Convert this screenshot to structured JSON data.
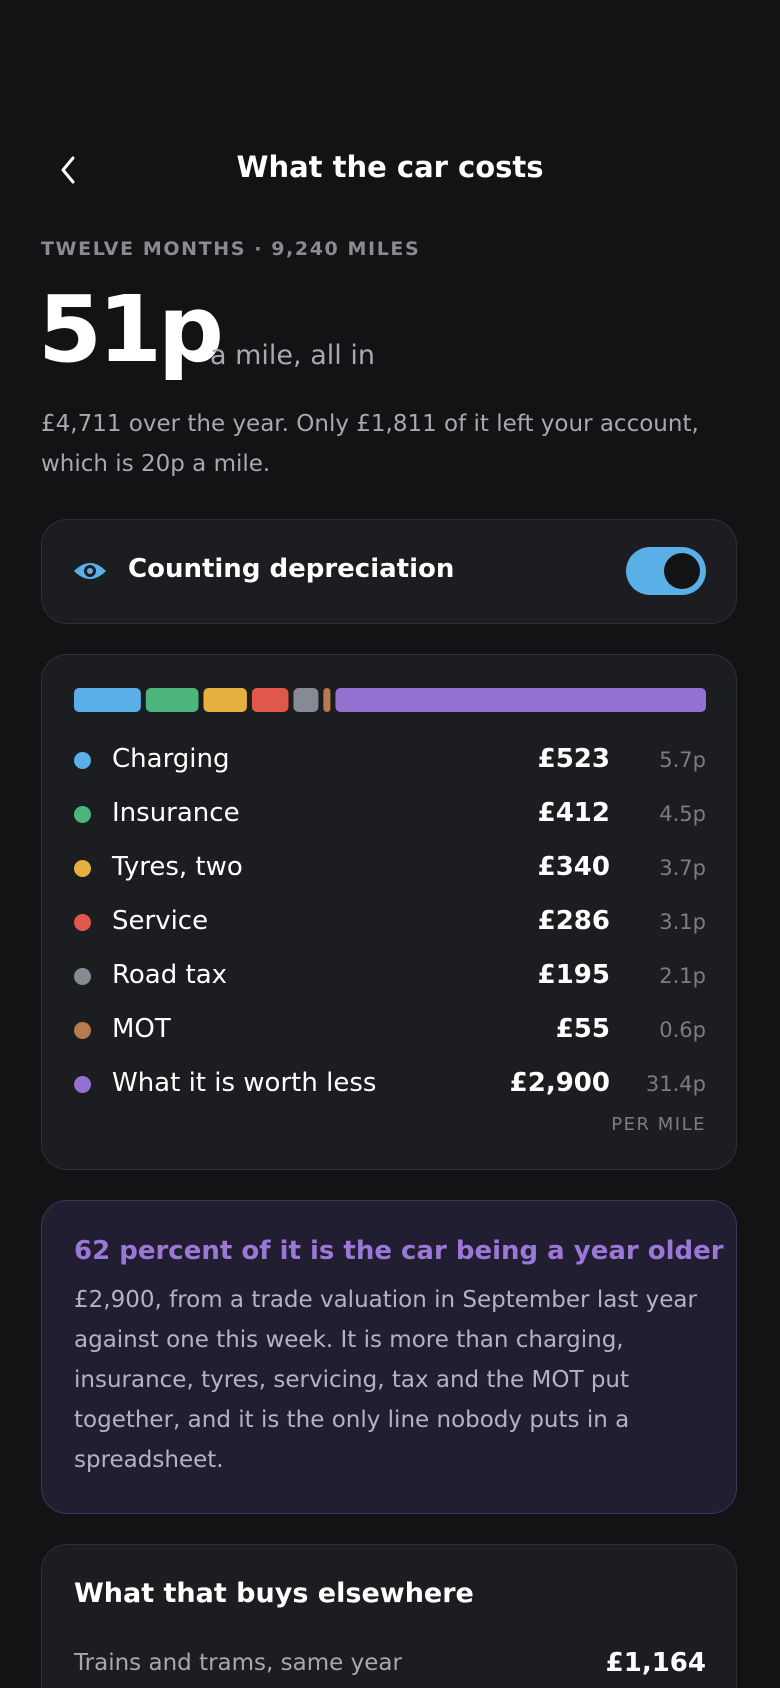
{
  "header": {
    "title": "What the car costs"
  },
  "period": "TWELVE MONTHS · 9,240 MILES",
  "headline": {
    "value": "51p",
    "suffix": "a mile, all in"
  },
  "summary": "£4,711 over the year. Only £1,811 of it left your account, which is 20p a mile.",
  "toggle": {
    "label": "Counting depreciation",
    "on": true
  },
  "breakdown": {
    "items": [
      {
        "name": "Charging",
        "amount": {
          "value": 523,
          "label": "£523"
        },
        "per_mile": "5.7p",
        "color": "#5aafe6"
      },
      {
        "name": "Insurance",
        "amount": {
          "value": 412,
          "label": "£412"
        },
        "per_mile": "4.5p",
        "color": "#4cb57c"
      },
      {
        "name": "Tyres, two",
        "amount": {
          "value": 340,
          "label": "£340"
        },
        "per_mile": "3.7p",
        "color": "#e6b03e"
      },
      {
        "name": "Service",
        "amount": {
          "value": 286,
          "label": "£286"
        },
        "per_mile": "3.1p",
        "color": "#e0584a"
      },
      {
        "name": "Road tax",
        "amount": {
          "value": 195,
          "label": "£195"
        },
        "per_mile": "2.1p",
        "color": "#858a94"
      },
      {
        "name": "MOT",
        "amount": {
          "value": 55,
          "label": "£55"
        },
        "per_mile": "0.6p",
        "color": "#b87a4e"
      },
      {
        "name": "What it is worth less",
        "amount": {
          "value": 2900,
          "label": "£2,900"
        },
        "per_mile": "31.4p",
        "color": "#9470d0"
      }
    ],
    "per_mile_label": "PER MILE"
  },
  "callout": {
    "title": "62 percent of it is the car being a year older",
    "body": "£2,900, from a trade valuation in September last year against one this week. It is more than charging, insurance, tyres, servicing, tax and the MOT put together, and it is the only line nobody puts in a spreadsheet."
  },
  "elsewhere": {
    "title": "What that buys elsewhere",
    "rows": [
      {
        "label": "Trains and trams, same year",
        "value": "£1,164"
      }
    ]
  }
}
